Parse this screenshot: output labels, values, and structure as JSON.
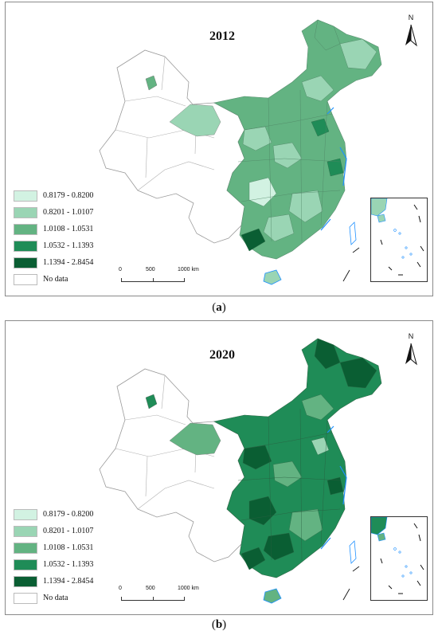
{
  "panels": [
    {
      "year": "2012",
      "caption_letter": "a",
      "legend": [
        {
          "label": "0.8179 - 0.8200",
          "color": "#d2f2e2"
        },
        {
          "label": "0.8201 - 1.0107",
          "color": "#9ad5b4"
        },
        {
          "label": "1.0108 - 1.0531",
          "color": "#63b382"
        },
        {
          "label": "1.0532 - 1.1393",
          "color": "#1f8c57"
        },
        {
          "label": "1.1394 - 2.8454",
          "color": "#0a5e33"
        },
        {
          "label": "No data",
          "color": "#ffffff"
        }
      ],
      "scale_ticks": [
        "0",
        "500",
        "1000 km"
      ],
      "north_label": "N"
    },
    {
      "year": "2020",
      "caption_letter": "b",
      "legend": [
        {
          "label": "0.8179 - 0.8200",
          "color": "#d2f2e2"
        },
        {
          "label": "0.8201 - 1.0107",
          "color": "#9ad5b4"
        },
        {
          "label": "1.0108 - 1.0531",
          "color": "#63b382"
        },
        {
          "label": "1.0532 - 1.1393",
          "color": "#1f8c57"
        },
        {
          "label": "1.1394 - 2.8454",
          "color": "#0a5e33"
        },
        {
          "label": "No data",
          "color": "#ffffff"
        }
      ],
      "scale_ticks": [
        "0",
        "500",
        "1000 km"
      ],
      "north_label": "N"
    }
  ],
  "colors": {
    "no_data": "#ffffff",
    "boundary": "#9a9a9a",
    "coast": "#1e90ff"
  }
}
